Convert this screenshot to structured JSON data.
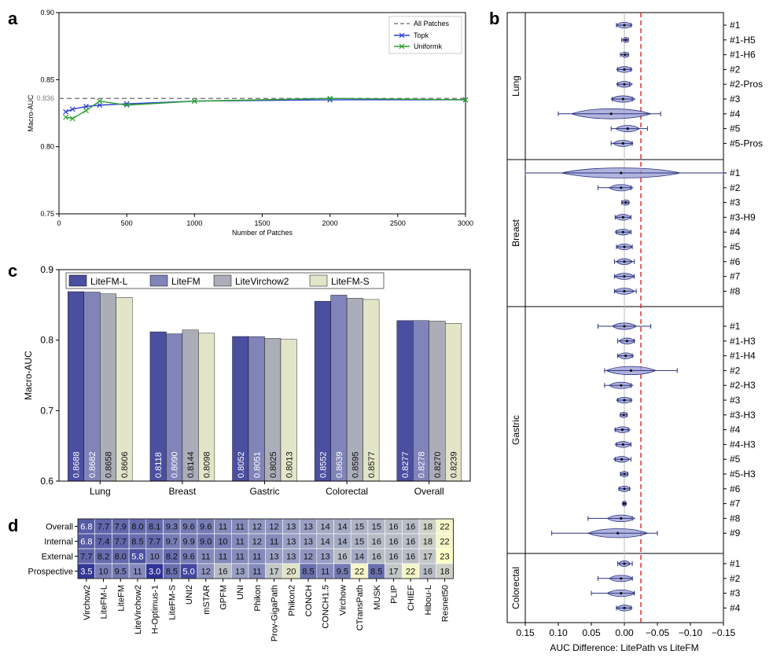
{
  "panels": {
    "a_letter": "a",
    "b_letter": "b",
    "c_letter": "c",
    "d_letter": "d"
  },
  "chart_data": [
    {
      "id": "a",
      "type": "line",
      "xlabel": "Number of Patches",
      "ylabel": "Macro-AUC",
      "xlim": [
        0,
        3000
      ],
      "ylim": [
        0.75,
        0.9
      ],
      "xticks": [
        "0",
        "500",
        "1000",
        "1500",
        "2000",
        "2500",
        "3000"
      ],
      "yticks": [
        "0.75",
        "0.80",
        "0.85",
        "0.90"
      ],
      "reference": {
        "name": "All Patches",
        "value": 0.836,
        "label": "0.836"
      },
      "series": [
        {
          "name": "Topk",
          "color": "#2b3ed8",
          "x": [
            50,
            100,
            200,
            300,
            500,
            1000,
            2000,
            3000
          ],
          "y": [
            0.826,
            0.828,
            0.83,
            0.831,
            0.832,
            0.834,
            0.835,
            0.835
          ]
        },
        {
          "name": "Uniformk",
          "color": "#2ca02c",
          "x": [
            50,
            100,
            200,
            300,
            500,
            1000,
            2000,
            3000
          ],
          "y": [
            0.822,
            0.821,
            0.827,
            0.834,
            0.831,
            0.834,
            0.836,
            0.835
          ]
        }
      ]
    },
    {
      "id": "c",
      "type": "bar",
      "ylabel": "Macro-AUC",
      "ylim": [
        0.6,
        0.9
      ],
      "yticks": [
        "0.6",
        "0.7",
        "0.8",
        "0.9"
      ],
      "categories": [
        "Lung",
        "Breast",
        "Gastric",
        "Colorectal",
        "Overall"
      ],
      "series": [
        {
          "name": "LiteFM-L",
          "color": "#4b4fa0",
          "values": [
            0.8688,
            0.8118,
            0.8052,
            0.8552,
            0.8277
          ],
          "labels": [
            "0.8688",
            "0.8118",
            "0.8052",
            "0.8552",
            "0.8277"
          ]
        },
        {
          "name": "LiteFM",
          "color": "#8184b8",
          "values": [
            0.8682,
            0.809,
            0.8051,
            0.8639,
            0.8278
          ],
          "labels": [
            "0.8682",
            "0.8090",
            "0.8051",
            "0.8639",
            "0.8278"
          ]
        },
        {
          "name": "LiteVirchow2",
          "color": "#abadb8",
          "values": [
            0.8658,
            0.8144,
            0.8025,
            0.8595,
            0.827
          ],
          "labels": [
            "0.8658",
            "0.8144",
            "0.8025",
            "0.8595",
            "0.8270"
          ]
        },
        {
          "name": "LiteFM-S",
          "color": "#e3e5c9",
          "values": [
            0.8606,
            0.8098,
            0.8013,
            0.8577,
            0.8239
          ],
          "labels": [
            "0.8606",
            "0.8098",
            "0.8013",
            "0.8577",
            "0.8239"
          ]
        }
      ]
    },
    {
      "id": "b",
      "type": "violin",
      "xlabel": "AUC Difference: LitePath vs LiteFM",
      "xlim": [
        0.15,
        -0.15
      ],
      "xticks": [
        "0.15",
        "0.10",
        "0.05",
        "0.00",
        "−0.05",
        "−0.10",
        "−0.15"
      ],
      "reference_line": 0.0,
      "threshold_line": -0.025,
      "groups": [
        "Lung",
        "Breast",
        "Gastric",
        "Colorectal"
      ],
      "rows": [
        {
          "label": "#1",
          "group": "Lung",
          "mean": 0.0,
          "spread": 0.008,
          "min": -0.01,
          "max": 0.012
        },
        {
          "label": "#1-H5",
          "group": "Lung",
          "mean": -0.002,
          "spread": 0.003,
          "min": -0.006,
          "max": 0.004
        },
        {
          "label": "#1-H6",
          "group": "Lung",
          "mean": -0.001,
          "spread": 0.004,
          "min": -0.006,
          "max": 0.006
        },
        {
          "label": "#2",
          "group": "Lung",
          "mean": 0.0,
          "spread": 0.008,
          "min": -0.01,
          "max": 0.01
        },
        {
          "label": "#2-Pros",
          "group": "Lung",
          "mean": 0.0,
          "spread": 0.008,
          "min": -0.008,
          "max": 0.01
        },
        {
          "label": "#3",
          "group": "Lung",
          "mean": 0.002,
          "spread": 0.012,
          "min": -0.012,
          "max": 0.018
        },
        {
          "label": "#4",
          "group": "Lung",
          "mean": 0.02,
          "spread": 0.04,
          "min": -0.055,
          "max": 0.1
        },
        {
          "label": "#5",
          "group": "Lung",
          "mean": -0.005,
          "spread": 0.012,
          "min": -0.035,
          "max": 0.02
        },
        {
          "label": "#5-Pros",
          "group": "Lung",
          "mean": 0.002,
          "spread": 0.01,
          "min": -0.012,
          "max": 0.02
        },
        {
          "label": "#1",
          "group": "Breast",
          "mean": 0.005,
          "spread": 0.06,
          "min": -0.15,
          "max": 0.15
        },
        {
          "label": "#2",
          "group": "Breast",
          "mean": 0.005,
          "spread": 0.012,
          "min": -0.01,
          "max": 0.04
        },
        {
          "label": "#3",
          "group": "Breast",
          "mean": -0.002,
          "spread": 0.004,
          "min": -0.006,
          "max": 0.004
        },
        {
          "label": "#3-H9",
          "group": "Breast",
          "mean": 0.002,
          "spread": 0.008,
          "min": -0.01,
          "max": 0.014
        },
        {
          "label": "#4",
          "group": "Breast",
          "mean": 0.002,
          "spread": 0.008,
          "min": -0.01,
          "max": 0.012
        },
        {
          "label": "#5",
          "group": "Breast",
          "mean": 0.0,
          "spread": 0.008,
          "min": -0.012,
          "max": 0.012
        },
        {
          "label": "#6",
          "group": "Breast",
          "mean": 0.0,
          "spread": 0.008,
          "min": -0.015,
          "max": 0.015
        },
        {
          "label": "#7",
          "group": "Breast",
          "mean": 0.0,
          "spread": 0.01,
          "min": -0.015,
          "max": 0.015
        },
        {
          "label": "#8",
          "group": "Breast",
          "mean": 0.0,
          "spread": 0.01,
          "min": -0.018,
          "max": 0.015
        },
        {
          "label": "#1",
          "group": "Gastric",
          "mean": 0.0,
          "spread": 0.012,
          "min": -0.04,
          "max": 0.04
        },
        {
          "label": "#1-H3",
          "group": "Gastric",
          "mean": -0.004,
          "spread": 0.008,
          "min": -0.015,
          "max": 0.01
        },
        {
          "label": "#1-H4",
          "group": "Gastric",
          "mean": -0.002,
          "spread": 0.008,
          "min": -0.012,
          "max": 0.01
        },
        {
          "label": "#2",
          "group": "Gastric",
          "mean": -0.01,
          "spread": 0.025,
          "min": -0.08,
          "max": 0.03
        },
        {
          "label": "#2-H3",
          "group": "Gastric",
          "mean": 0.005,
          "spread": 0.012,
          "min": -0.01,
          "max": 0.03
        },
        {
          "label": "#3",
          "group": "Gastric",
          "mean": 0.0,
          "spread": 0.008,
          "min": -0.01,
          "max": 0.01
        },
        {
          "label": "#3-H3",
          "group": "Gastric",
          "mean": 0.001,
          "spread": 0.004,
          "min": -0.004,
          "max": 0.006
        },
        {
          "label": "#4",
          "group": "Gastric",
          "mean": 0.003,
          "spread": 0.008,
          "min": -0.006,
          "max": 0.014
        },
        {
          "label": "#4-H3",
          "group": "Gastric",
          "mean": 0.002,
          "spread": 0.008,
          "min": -0.01,
          "max": 0.012
        },
        {
          "label": "#5",
          "group": "Gastric",
          "mean": 0.004,
          "spread": 0.008,
          "min": -0.01,
          "max": 0.014
        },
        {
          "label": "#5-H3",
          "group": "Gastric",
          "mean": 0.0,
          "spread": 0.004,
          "min": -0.005,
          "max": 0.006
        },
        {
          "label": "#6",
          "group": "Gastric",
          "mean": 0.0,
          "spread": 0.006,
          "min": -0.008,
          "max": 0.008
        },
        {
          "label": "#7",
          "group": "Gastric",
          "mean": 0.0,
          "spread": 0.002,
          "min": -0.002,
          "max": 0.002
        },
        {
          "label": "#8",
          "group": "Gastric",
          "mean": 0.005,
          "spread": 0.014,
          "min": -0.012,
          "max": 0.055
        },
        {
          "label": "#9",
          "group": "Gastric",
          "mean": 0.01,
          "spread": 0.03,
          "min": -0.05,
          "max": 0.11
        },
        {
          "label": "#1",
          "group": "Colorectal",
          "mean": 0.0,
          "spread": 0.006,
          "min": -0.012,
          "max": 0.01
        },
        {
          "label": "#2",
          "group": "Colorectal",
          "mean": 0.005,
          "spread": 0.012,
          "min": -0.012,
          "max": 0.04
        },
        {
          "label": "#3",
          "group": "Colorectal",
          "mean": 0.005,
          "spread": 0.014,
          "min": -0.015,
          "max": 0.05
        },
        {
          "label": "#4",
          "group": "Colorectal",
          "mean": 0.0,
          "spread": 0.008,
          "min": -0.01,
          "max": 0.012
        }
      ]
    },
    {
      "id": "d",
      "type": "heatmap",
      "rows": [
        "Overall",
        "Internal",
        "External",
        "Prospective"
      ],
      "columns": [
        "Virchow2",
        "LiteFM-L",
        "LiteFM",
        "LiteVirchow2",
        "H-Optimus-1",
        "LiteFM-S",
        "UNI2",
        "mSTAR",
        "GPFM",
        "UNI",
        "Phikon",
        "Prov-GigaPath",
        "Phikon2",
        "CONCH",
        "CONCH1.5",
        "Virchow",
        "CTransPath",
        "MUSK",
        "PLIP",
        "CHIEF",
        "Hibou-L",
        "Resnet50"
      ],
      "values": [
        [
          6.8,
          7.7,
          7.9,
          8.0,
          8.1,
          9.3,
          9.6,
          9.6,
          11,
          11,
          12,
          12,
          13,
          13,
          14,
          14,
          15,
          15,
          16,
          16,
          18,
          22
        ],
        [
          6.8,
          7.4,
          7.7,
          8.5,
          7.7,
          9.7,
          9.9,
          9.0,
          10,
          11,
          12,
          11,
          13,
          13,
          14,
          14,
          15,
          16,
          16,
          16,
          18,
          22
        ],
        [
          7.7,
          8.2,
          8.0,
          5.8,
          10,
          8.2,
          9.6,
          11,
          11,
          11,
          11,
          13,
          13,
          12,
          13,
          16,
          14,
          16,
          16,
          16,
          17,
          23
        ],
        [
          3.5,
          10,
          9.5,
          11,
          3.0,
          8.5,
          5.0,
          12,
          16,
          13,
          11,
          17,
          20,
          8.5,
          11,
          9.5,
          22,
          8.5,
          17,
          22,
          16,
          18
        ]
      ],
      "labels": [
        [
          "6.8",
          "7.7",
          "7.9",
          "8.0",
          "8.1",
          "9.3",
          "9.6",
          "9.6",
          "11",
          "11",
          "12",
          "12",
          "13",
          "13",
          "14",
          "14",
          "15",
          "15",
          "16",
          "16",
          "18",
          "22"
        ],
        [
          "6.8",
          "7.4",
          "7.7",
          "8.5",
          "7.7",
          "9.7",
          "9.9",
          "9.0",
          "10",
          "11",
          "12",
          "11",
          "13",
          "13",
          "14",
          "14",
          "15",
          "16",
          "16",
          "16",
          "18",
          "22"
        ],
        [
          "7.7",
          "8.2",
          "8.0",
          "5.8",
          "10",
          "8.2",
          "9.6",
          "11",
          "11",
          "11",
          "11",
          "13",
          "13",
          "12",
          "13",
          "16",
          "14",
          "16",
          "16",
          "16",
          "17",
          "23"
        ],
        [
          "3.5",
          "10",
          "9.5",
          "11",
          "3.0",
          "8.5",
          "5.0",
          "12",
          "16",
          "13",
          "11",
          "17",
          "20",
          "8.5",
          "11",
          "9.5",
          "22",
          "8.5",
          "17",
          "22",
          "16",
          "18"
        ]
      ],
      "scale": {
        "low_color": "#2e3394",
        "mid_color": "#9aa0c4",
        "high_color": "#ffffc8",
        "min": 3,
        "max": 23
      }
    }
  ]
}
